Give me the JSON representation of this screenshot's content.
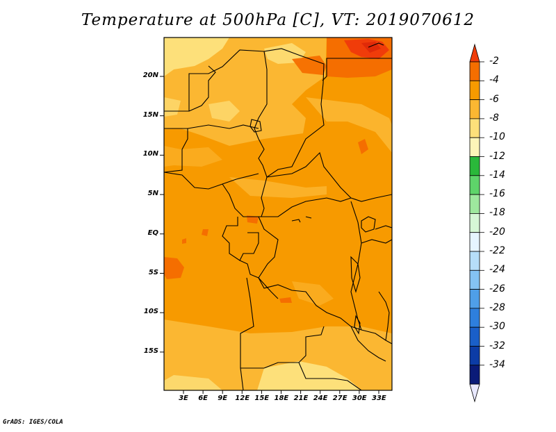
{
  "title": "Temperature at 500hPa [C], VT: 2019070612",
  "credit": "GrADS: IGES/COLA",
  "map": {
    "lat_ticks": [
      "20N",
      "15N",
      "10N",
      "5N",
      "EQ",
      "5S",
      "10S",
      "15S"
    ],
    "lon_ticks": [
      "3E",
      "6E",
      "9E",
      "12E",
      "15E",
      "18E",
      "21E",
      "24E",
      "27E",
      "30E",
      "33E"
    ]
  },
  "colorbar": {
    "labels": [
      "-2",
      "-4",
      "-6",
      "-8",
      "-10",
      "-12",
      "-14",
      "-16",
      "-18",
      "-20",
      "-22",
      "-24",
      "-26",
      "-28",
      "-30",
      "-32",
      "-34"
    ],
    "colors": [
      "#f03c0a",
      "#f56e00",
      "#f79a00",
      "#fbb732",
      "#fde07a",
      "#fdf5b8",
      "#2ab83a",
      "#5ed46a",
      "#9ee89e",
      "#d6f7d6",
      "#e6f5ff",
      "#b6def9",
      "#84c3f3",
      "#4f9fe8",
      "#2e7fdd",
      "#1a5fc9",
      "#0c3ca6",
      "#0a1b78",
      "#e8e8ff"
    ]
  }
}
